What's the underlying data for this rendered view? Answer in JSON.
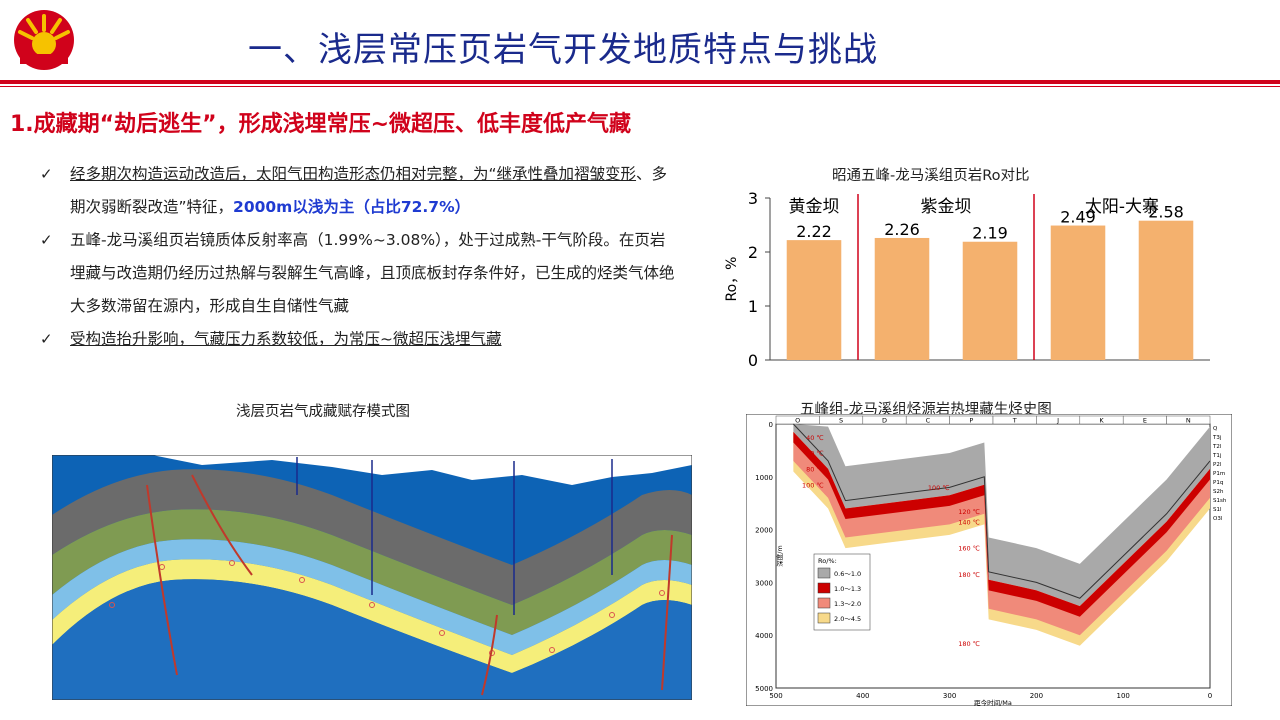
{
  "header": {
    "title": "一、浅层常压页岩气开发地质特点与挑战"
  },
  "section": {
    "title": "1.成藏期“劫后逃生”，形成浅埋常压~微超压、低丰度低产气藏"
  },
  "bullets": [
    {
      "parts": [
        {
          "text": "经多期次构造运动改造后，太阳气田构造形态仍相对完整，为“继承性叠加褶皱变形",
          "style": "u"
        },
        {
          "text": "、多期次弱断裂改造”特征，",
          "style": ""
        },
        {
          "text": "2000m以浅为主（占比72.7%）",
          "style": "hl"
        }
      ]
    },
    {
      "parts": [
        {
          "text": "五峰-龙马溪组页岩镜质体反射率高（1.99%~3.08%），处于过成熟-干气阶段。在页岩埋藏与改造期仍经历过热解与裂解生气高峰，且顶底板封存条件好，已生成的烃类气体绝大多数滞留在源内，形成自生自储性气藏",
          "style": ""
        }
      ]
    },
    {
      "parts": [
        {
          "text": "受构造抬升影响，气藏压力系数较低，为常压~微超压浅埋气藏",
          "style": "u"
        }
      ]
    }
  ],
  "ro_chart": {
    "title": "昭通五峰-龙马溪组页岩Ro对比",
    "chart_data": {
      "type": "bar",
      "title": "昭通五峰-龙马溪组页岩Ro对比",
      "ylabel": "Ro，%",
      "ylim": [
        0,
        3
      ],
      "yticks": [
        "0",
        "1",
        "2",
        "3"
      ],
      "groups": [
        "黄金坝",
        "紫金坝",
        "太阳-大寨"
      ],
      "group_sizes": [
        1,
        2,
        2
      ],
      "values": [
        2.22,
        2.26,
        2.19,
        2.49,
        2.58
      ],
      "value_labels": [
        "2.22",
        "2.26",
        "2.19",
        "2.49",
        "2.58"
      ],
      "bar_color": "#f4b16e",
      "divider_color": "#d0021b"
    }
  },
  "model_figure": {
    "title": "浅层页岩气成藏赋存模式图"
  },
  "burial_chart": {
    "title": "五峰组-龙马溪组烃源岩热埋藏生烃史图",
    "chart_data": {
      "type": "line",
      "title": "五峰组-龙马溪组烃源岩热埋藏生烃史图",
      "xlabel": "距今时间/Ma",
      "ylabel": "深度/m",
      "xlim": [
        500,
        0
      ],
      "ylim": [
        0,
        5000
      ],
      "xticks": [
        "500",
        "400",
        "300",
        "200",
        "100",
        "0"
      ],
      "yticks": [
        "0",
        "1000",
        "2000",
        "3000",
        "4000",
        "5000"
      ],
      "periods": [
        "O",
        "S",
        "D",
        "C",
        "P",
        "T",
        "J",
        "K",
        "E",
        "N"
      ],
      "strata": [
        "Q",
        "T3j",
        "T2l",
        "T1j",
        "P2l",
        "P1m",
        "P1q",
        "S2h",
        "S1sh",
        "S1l",
        "O3l"
      ],
      "isotherms": [
        "40 ℃",
        "60 ℃",
        "80 ℃",
        "100 ℃",
        "100 ℃",
        "120 ℃",
        "140 ℃",
        "160 ℃",
        "180 ℃",
        "180 ℃"
      ],
      "legend_title": "Ro/%:",
      "legend": [
        {
          "label": "0.6～1.0",
          "color": "#a9a9a9"
        },
        {
          "label": "1.0～1.3",
          "color": "#cc0000"
        },
        {
          "label": "1.3～2.0",
          "color": "#f08a7a"
        },
        {
          "label": "2.0～4.5",
          "color": "#f7d98a"
        }
      ],
      "burial_curve": [
        {
          "age": 480,
          "depth": 0
        },
        {
          "age": 440,
          "depth": 700
        },
        {
          "age": 420,
          "depth": 1450
        },
        {
          "age": 300,
          "depth": 1200
        },
        {
          "age": 260,
          "depth": 1000
        },
        {
          "age": 255,
          "depth": 2800
        },
        {
          "age": 200,
          "depth": 3000
        },
        {
          "age": 150,
          "depth": 3300
        },
        {
          "age": 100,
          "depth": 2500
        },
        {
          "age": 50,
          "depth": 1700
        },
        {
          "age": 0,
          "depth": 700
        }
      ]
    }
  }
}
